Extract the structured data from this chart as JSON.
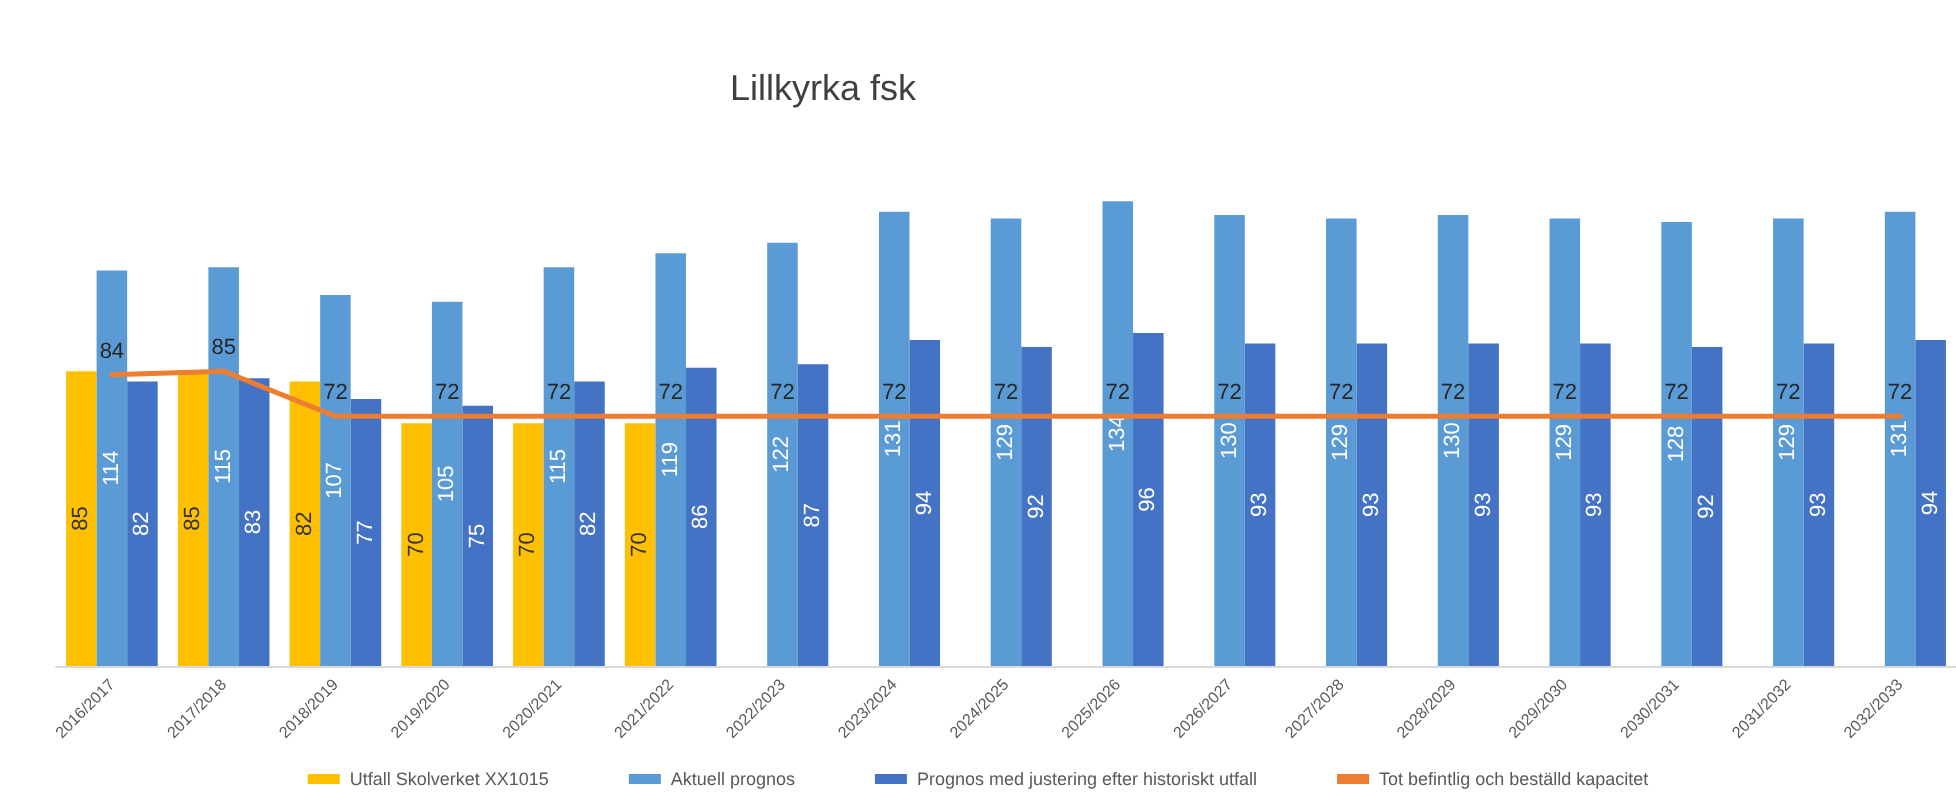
{
  "chart_data": {
    "type": "bar",
    "title": "Lillkyrka fsk",
    "categories": [
      "2016/2017",
      "2017/2018",
      "2018/2019",
      "2019/2020",
      "2020/2021",
      "2021/2022",
      "2022/2023",
      "2023/2024",
      "2024/2025",
      "2025/2026",
      "2026/2027",
      "2027/2028",
      "2028/2029",
      "2029/2030",
      "2030/2031",
      "2031/2032",
      "2032/2033"
    ],
    "series": [
      {
        "name": "Utfall Skolverket XX1015",
        "color": "#ffc000",
        "values": [
          85,
          85,
          82,
          70,
          70,
          70,
          null,
          null,
          null,
          null,
          null,
          null,
          null,
          null,
          null,
          null,
          null
        ]
      },
      {
        "name": "Aktuell prognos",
        "color": "#5b9bd5",
        "values": [
          114,
          115,
          107,
          105,
          115,
          119,
          122,
          131,
          129,
          134,
          130,
          129,
          130,
          129,
          128,
          129,
          131
        ]
      },
      {
        "name": "Prognos med justering efter historiskt utfall",
        "color": "#4472c4",
        "values": [
          82,
          83,
          77,
          75,
          82,
          86,
          87,
          94,
          92,
          96,
          93,
          93,
          93,
          93,
          92,
          93,
          94
        ]
      },
      {
        "name": "Tot befintlig och beställd kapacitet",
        "type": "line",
        "color": "#ed7d31",
        "values": [
          84,
          85,
          72,
          72,
          72,
          72,
          72,
          72,
          72,
          72,
          72,
          72,
          72,
          72,
          72,
          72,
          72
        ]
      }
    ],
    "data_labels": true,
    "grid": false,
    "legend": "bottom",
    "marker": "none",
    "line_style": "solid"
  }
}
